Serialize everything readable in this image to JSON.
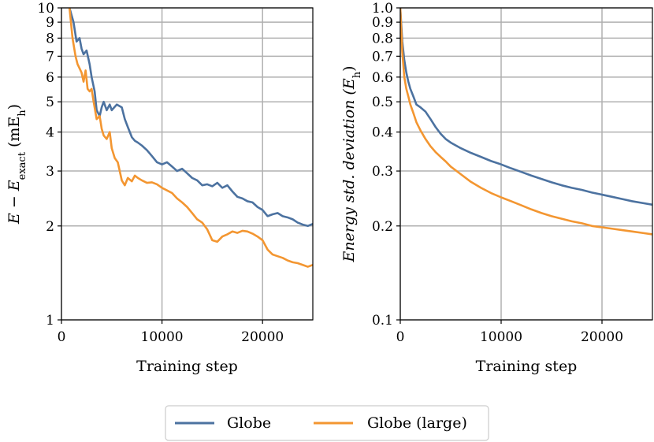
{
  "chart_data": [
    {
      "type": "line",
      "xlabel": "Training step",
      "ylabel": "E − E_exact (mE_h)",
      "ylabel_parts": {
        "main": "E − E",
        "sub1": "exact",
        "mid": " (mE",
        "sub2": "h",
        "end": ")"
      },
      "yscale": "log",
      "xlim": [
        0,
        25000
      ],
      "ylim": [
        1,
        10
      ],
      "xticks": [
        0,
        10000,
        20000
      ],
      "xtick_labels": [
        "0",
        "10000",
        "20000"
      ],
      "yticks": [
        1,
        2,
        3,
        4,
        5,
        6,
        7,
        8,
        9,
        10
      ],
      "ytick_labels": [
        "1",
        "2",
        "3",
        "4",
        "5",
        "6",
        "7",
        "8",
        "9",
        "10"
      ],
      "grid": true,
      "series": [
        {
          "name": "Globe",
          "color": "#4c72a0",
          "x": [
            800,
            1200,
            1500,
            1800,
            2000,
            2200,
            2500,
            2800,
            3000,
            3300,
            3500,
            3800,
            4000,
            4200,
            4500,
            4800,
            5000,
            5500,
            6000,
            6300,
            6600,
            7000,
            7300,
            7600,
            8000,
            8500,
            9000,
            9500,
            10000,
            10500,
            11000,
            11500,
            12000,
            12500,
            13000,
            13500,
            14000,
            14500,
            15000,
            15500,
            16000,
            16500,
            17000,
            17500,
            18000,
            18500,
            19000,
            19500,
            20000,
            20500,
            21000,
            21500,
            22000,
            22500,
            23000,
            23500,
            24000,
            24500,
            25000
          ],
          "y": [
            10,
            9.0,
            7.8,
            8.0,
            7.4,
            7.1,
            7.3,
            6.6,
            6.0,
            5.4,
            4.7,
            4.5,
            4.8,
            5.0,
            4.7,
            4.9,
            4.7,
            4.9,
            4.8,
            4.4,
            4.15,
            3.85,
            3.75,
            3.7,
            3.62,
            3.5,
            3.35,
            3.2,
            3.15,
            3.2,
            3.1,
            3.0,
            3.05,
            2.95,
            2.85,
            2.8,
            2.7,
            2.72,
            2.68,
            2.75,
            2.65,
            2.7,
            2.58,
            2.48,
            2.45,
            2.4,
            2.38,
            2.3,
            2.25,
            2.15,
            2.18,
            2.2,
            2.15,
            2.13,
            2.1,
            2.05,
            2.02,
            2.0,
            2.03
          ]
        },
        {
          "name": "Globe (large)",
          "color": "#f39631",
          "x": [
            800,
            1100,
            1400,
            1600,
            1800,
            2000,
            2200,
            2400,
            2600,
            2800,
            3000,
            3200,
            3500,
            3800,
            4000,
            4200,
            4500,
            4800,
            5000,
            5300,
            5600,
            6000,
            6300,
            6600,
            7000,
            7300,
            7600,
            8000,
            8500,
            9000,
            9500,
            10000,
            10500,
            11000,
            11500,
            12000,
            12500,
            13000,
            13500,
            14000,
            14500,
            15000,
            15500,
            16000,
            16500,
            17000,
            17500,
            18000,
            18500,
            19000,
            19500,
            20000,
            20500,
            21000,
            21500,
            22000,
            22500,
            23000,
            23500,
            24000,
            24500,
            25000
          ],
          "y": [
            10,
            8.0,
            7.0,
            6.6,
            6.4,
            6.2,
            5.8,
            6.3,
            5.5,
            5.4,
            5.5,
            5.0,
            4.4,
            4.5,
            4.1,
            3.9,
            3.8,
            4.0,
            3.55,
            3.3,
            3.2,
            2.8,
            2.7,
            2.85,
            2.78,
            2.9,
            2.85,
            2.8,
            2.75,
            2.76,
            2.72,
            2.65,
            2.6,
            2.55,
            2.45,
            2.38,
            2.3,
            2.2,
            2.1,
            2.05,
            1.95,
            1.8,
            1.78,
            1.85,
            1.88,
            1.92,
            1.9,
            1.93,
            1.92,
            1.89,
            1.85,
            1.8,
            1.68,
            1.62,
            1.6,
            1.58,
            1.55,
            1.53,
            1.52,
            1.5,
            1.48,
            1.5
          ]
        }
      ]
    },
    {
      "type": "line",
      "xlabel": "Training step",
      "ylabel": "Energy std. deviation (E_h)",
      "ylabel_parts": {
        "main": "Energy std. deviation (E",
        "sub1": "h",
        "end": ")"
      },
      "yscale": "log",
      "xlim": [
        0,
        25000
      ],
      "ylim": [
        0.1,
        1.0
      ],
      "xticks": [
        0,
        10000,
        20000
      ],
      "xtick_labels": [
        "0",
        "10000",
        "20000"
      ],
      "yticks": [
        0.1,
        0.2,
        0.3,
        0.4,
        0.5,
        0.6,
        0.7,
        0.8,
        0.9,
        1.0
      ],
      "ytick_labels": [
        "0.1",
        "0.2",
        "0.3",
        "0.4",
        "0.5",
        "0.6",
        "0.7",
        "0.8",
        "0.9",
        "1.0"
      ],
      "grid": true,
      "series": [
        {
          "name": "Globe",
          "color": "#4c72a0",
          "x": [
            0,
            200,
            400,
            600,
            800,
            1000,
            1300,
            1600,
            2000,
            2500,
            3000,
            3500,
            4000,
            4500,
            5000,
            6000,
            7000,
            8000,
            9000,
            10000,
            11000,
            12000,
            13000,
            14000,
            15000,
            16000,
            17000,
            18000,
            19000,
            20000,
            21000,
            22000,
            23000,
            24000,
            25000
          ],
          "y": [
            1.0,
            0.78,
            0.68,
            0.62,
            0.58,
            0.55,
            0.52,
            0.49,
            0.48,
            0.465,
            0.44,
            0.415,
            0.395,
            0.38,
            0.37,
            0.355,
            0.343,
            0.333,
            0.323,
            0.315,
            0.306,
            0.298,
            0.29,
            0.283,
            0.276,
            0.27,
            0.265,
            0.261,
            0.256,
            0.252,
            0.248,
            0.244,
            0.24,
            0.237,
            0.234
          ]
        },
        {
          "name": "Globe (large)",
          "color": "#f39631",
          "x": [
            0,
            200,
            400,
            600,
            800,
            1000,
            1300,
            1600,
            2000,
            2500,
            3000,
            3500,
            4000,
            4500,
            5000,
            6000,
            7000,
            8000,
            9000,
            10000,
            11000,
            12000,
            13000,
            14000,
            15000,
            16000,
            17000,
            18000,
            19000,
            20000,
            21000,
            22000,
            23000,
            24000,
            25000
          ],
          "y": [
            1.0,
            0.72,
            0.6,
            0.55,
            0.52,
            0.49,
            0.46,
            0.43,
            0.405,
            0.38,
            0.36,
            0.345,
            0.333,
            0.322,
            0.31,
            0.293,
            0.277,
            0.265,
            0.255,
            0.247,
            0.24,
            0.233,
            0.226,
            0.22,
            0.215,
            0.211,
            0.207,
            0.204,
            0.2,
            0.198,
            0.196,
            0.194,
            0.192,
            0.19,
            0.188
          ]
        }
      ]
    }
  ],
  "legend": {
    "placement": "bottom-center",
    "items": [
      {
        "label": "Globe",
        "color": "#4c72a0"
      },
      {
        "label": "Globe (large)",
        "color": "#f39631"
      }
    ]
  }
}
